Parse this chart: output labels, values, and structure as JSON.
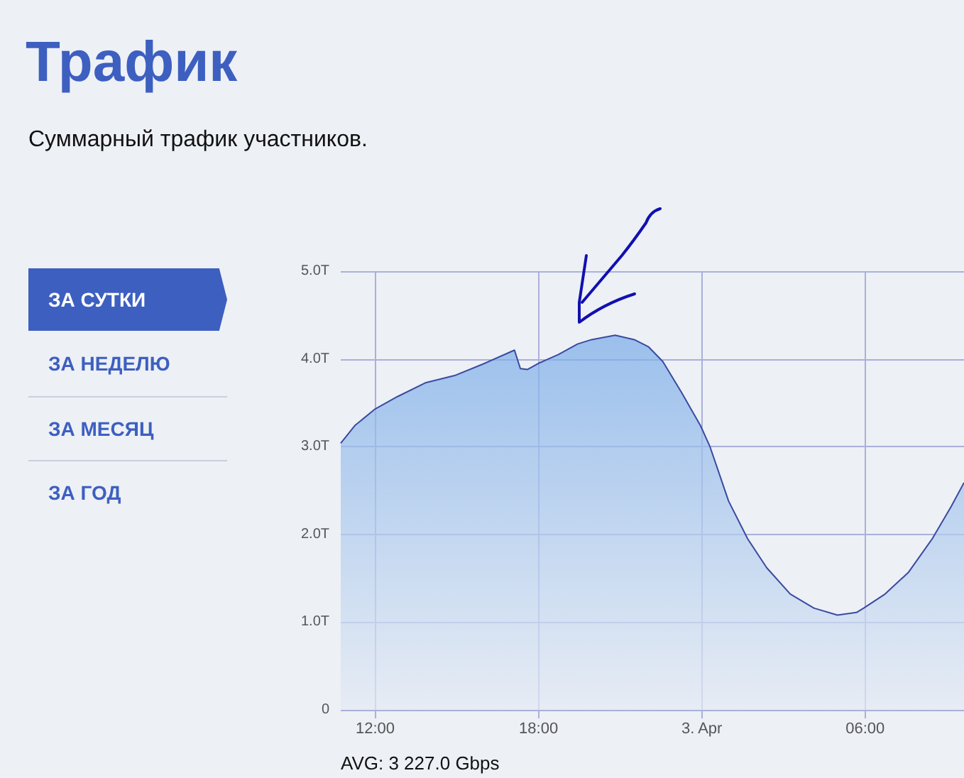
{
  "chart_data": {
    "type": "area",
    "title": "Трафик",
    "subtitle": "Суммарный трафик участников.",
    "annotations": [
      "ЗА СУТКИ",
      "ЗА НЕДЕЛЮ",
      "ЗА МЕСЯЦ",
      "ЗА ГОД",
      "AVG: 3 227.0 Gbps"
    ],
    "x": [
      "--04-02T10:44",
      "--04-02T11:15",
      "--04-02T12:00",
      "--04-02T12:49",
      "--04-02T13:52",
      "--04-02T14:55",
      "--04-02T15:57",
      "--04-02T17:07",
      "--04-02T17:20",
      "--04-02T17:36",
      "--04-02T18:00",
      "--04-02T18:44",
      "--04-02T19:26",
      "--04-02T19:57",
      "--04-02T20:49",
      "--04-02T21:31",
      "--04-02T22:02",
      "--04-02T22:34",
      "--04-02T23:15",
      "--04-02T23:57",
      "--04-03T00:18",
      "--04-03T00:59",
      "--04-03T01:41",
      "--04-03T02:23",
      "--04-03T03:15",
      "--04-03T04:07",
      "--04-03T04:59",
      "--04-03T05:41",
      "--04-03T05:57",
      "--04-03T06:44",
      "--04-03T07:36",
      "--04-03T08:28",
      "--04-03T09:10",
      "--04-03T09:38"
    ],
    "series": [
      {
        "color": "#3a4aa0",
        "values": [
          3.04,
          3.24,
          3.43,
          3.57,
          3.73,
          3.81,
          3.94,
          4.1,
          3.89,
          3.88,
          3.95,
          4.05,
          4.17,
          4.22,
          4.27,
          4.22,
          4.14,
          3.97,
          3.62,
          3.24,
          3.0,
          2.38,
          1.95,
          1.62,
          1.32,
          1.16,
          1.08,
          1.11,
          1.16,
          1.32,
          1.57,
          1.95,
          2.32,
          2.59
        ]
      }
    ],
    "xlim": [
      "--04-02T10:44",
      "--04-03T09:38"
    ],
    "xticks": [
      {
        "value": "--04-02T12:00",
        "label": "12:00"
      },
      {
        "value": "--04-02T18:00",
        "label": "18:00"
      },
      {
        "value": "--04-03T00:00",
        "label": "3. Apr"
      },
      {
        "value": "--04-03T06:00",
        "label": "06:00"
      }
    ],
    "ylim": [
      0,
      5
    ],
    "yticks": [
      0,
      {
        "value": 1,
        "label": "1.0T"
      },
      {
        "value": 2,
        "label": "2.0T"
      },
      {
        "value": 3,
        "label": "3.0T"
      },
      {
        "value": 4,
        "label": "4.0T"
      },
      {
        "value": 5,
        "label": "5.0T"
      }
    ],
    "grid": true,
    "marker": "none",
    "line_style": "solid"
  }
}
